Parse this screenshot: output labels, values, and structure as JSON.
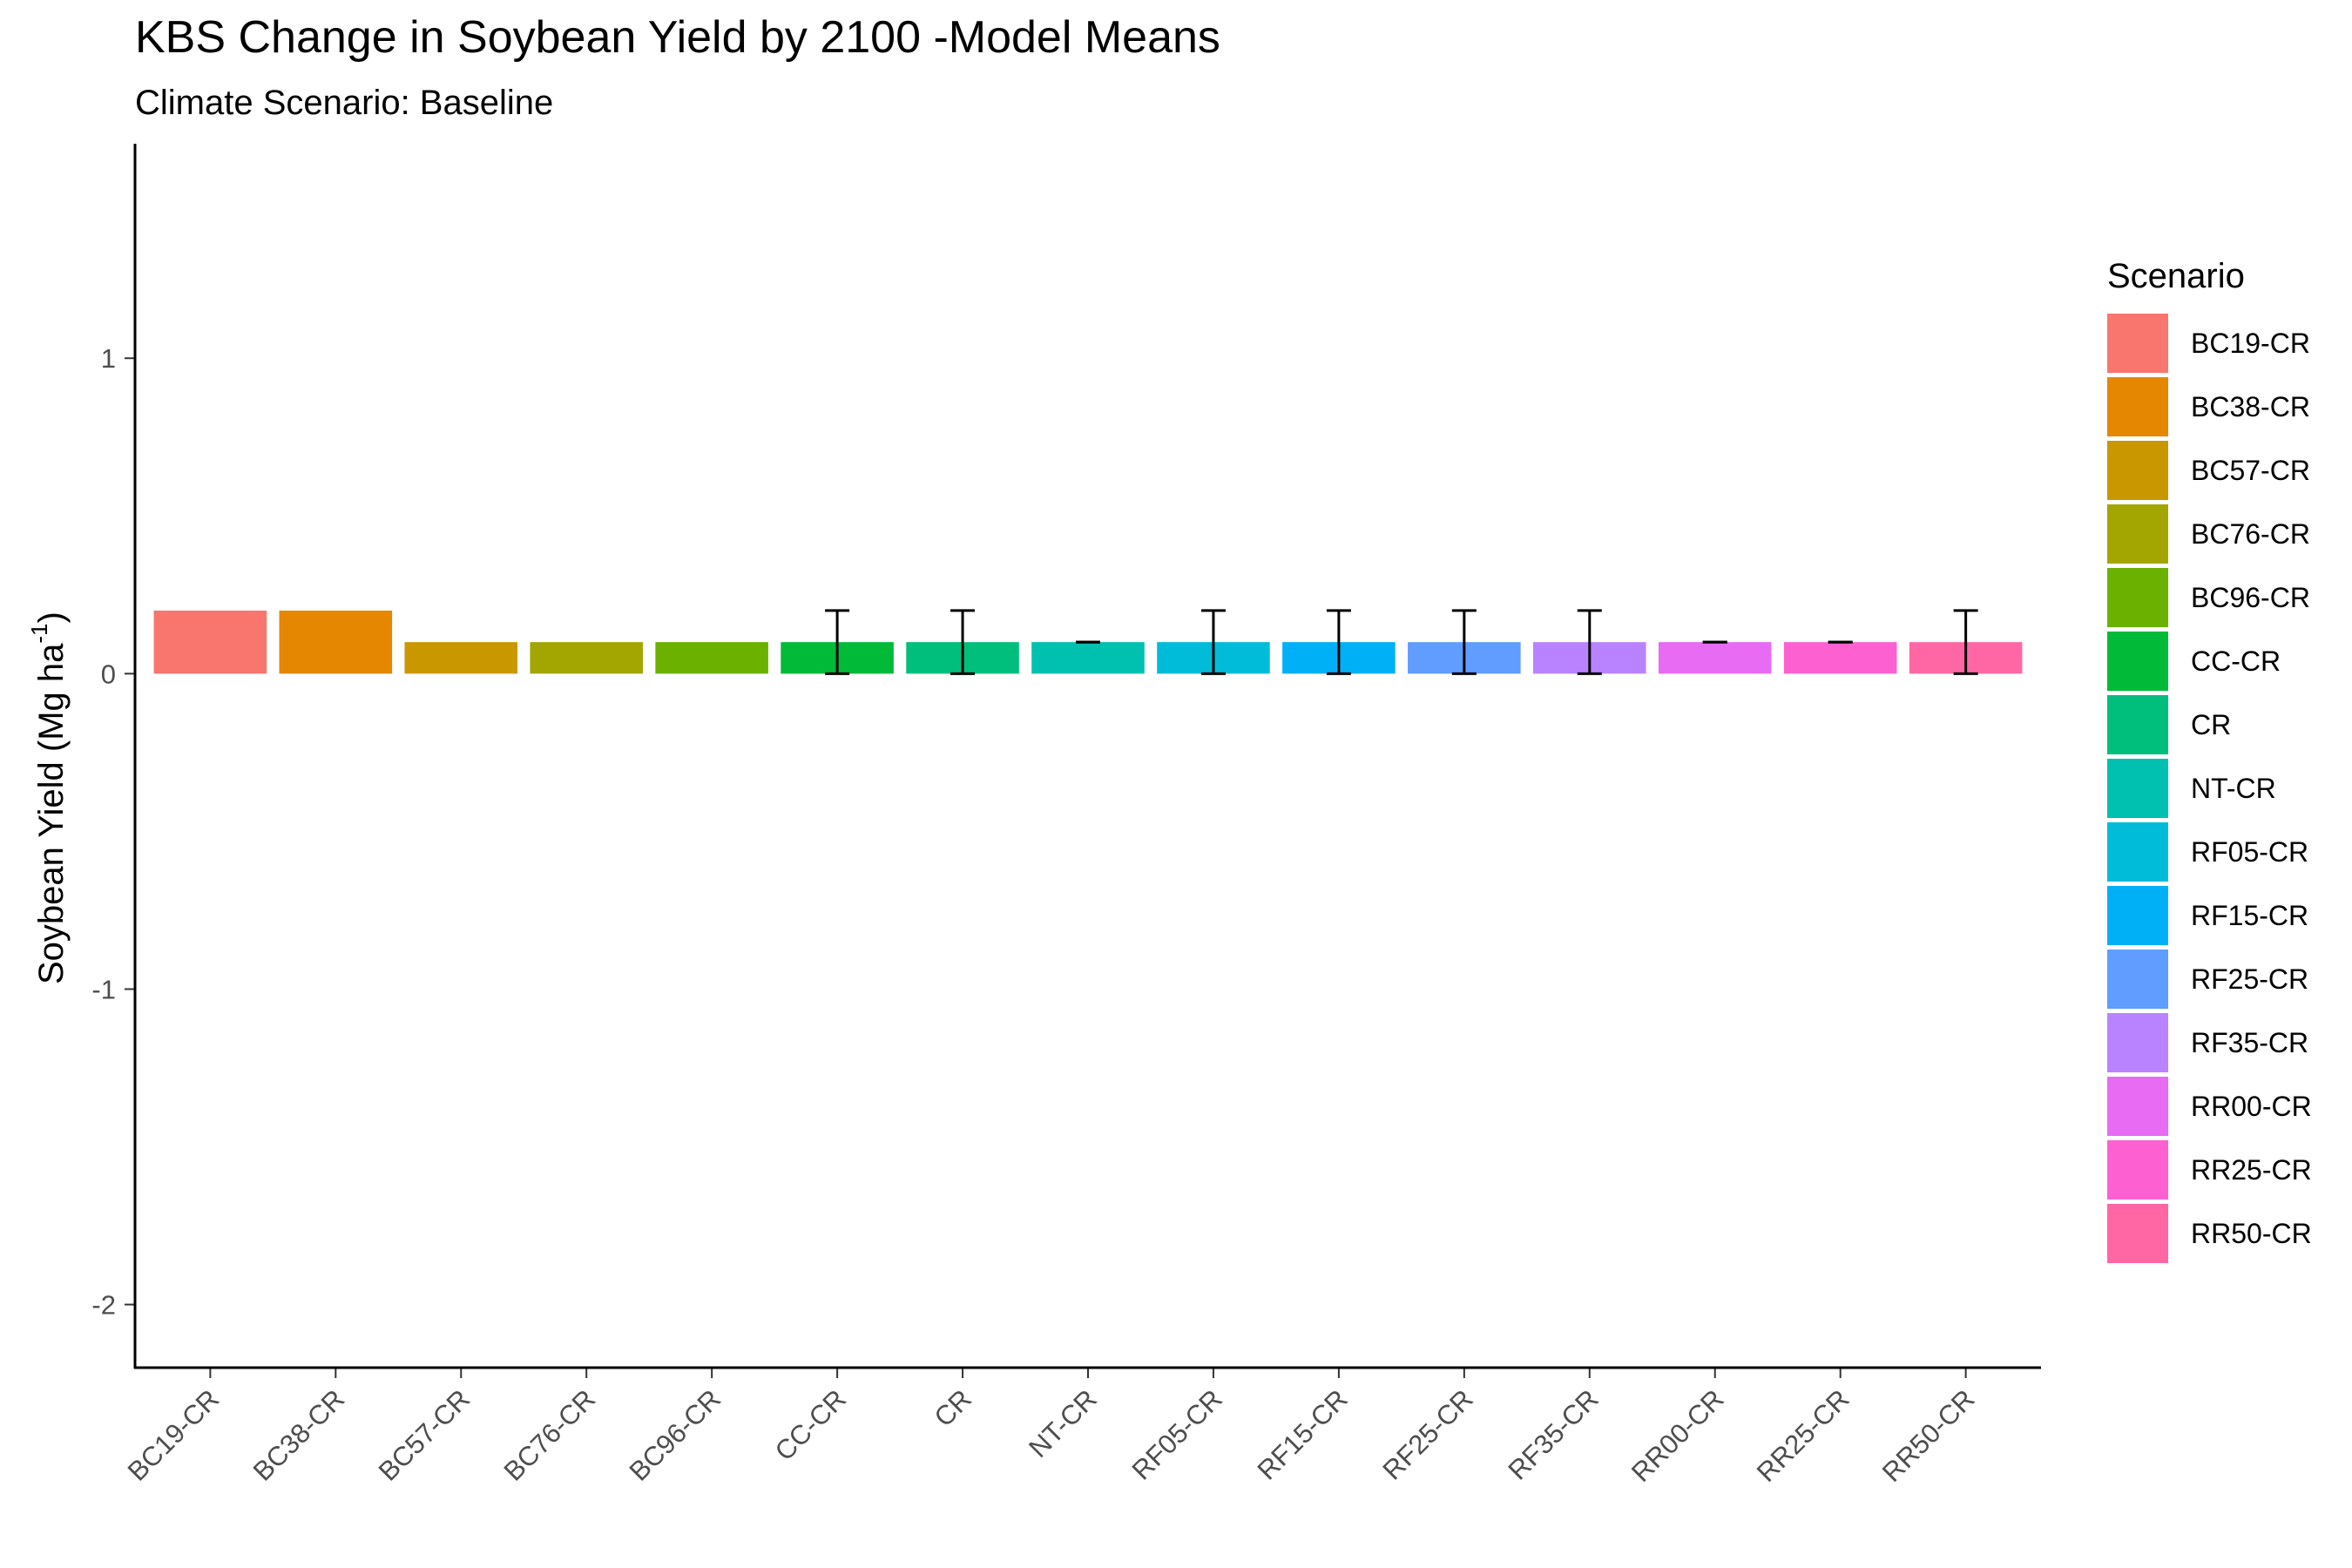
{
  "chart_data": {
    "type": "bar",
    "title": "KBS Change in Soybean Yield by  2100 -Model Means",
    "subtitle": "Climate Scenario: Baseline",
    "ylabel_main": "Soybean Yield (Mg ha",
    "ylabel_sup": "-1",
    "ylabel_close": ")",
    "xlabel": "",
    "ylim": [
      -2.2,
      1.68
    ],
    "yticks": [
      1,
      0,
      -1,
      -2
    ],
    "grid": false,
    "legend": {
      "title": "Scenario",
      "position": "right"
    },
    "categories": [
      "BC19-CR",
      "BC38-CR",
      "BC57-CR",
      "BC76-CR",
      "BC96-CR",
      "CC-CR",
      "CR",
      "NT-CR",
      "RF05-CR",
      "RF15-CR",
      "RF25-CR",
      "RF35-CR",
      "RR00-CR",
      "RR25-CR",
      "RR50-CR"
    ],
    "values": [
      0.2,
      0.2,
      0.1,
      0.1,
      0.1,
      0.1,
      0.1,
      0.1,
      0.1,
      0.1,
      0.1,
      0.1,
      0.1,
      0.1,
      0.1
    ],
    "error_low": [
      null,
      null,
      null,
      null,
      null,
      0.0,
      0.0,
      0.1,
      0.0,
      0.0,
      0.0,
      0.0,
      0.1,
      0.1,
      0.0
    ],
    "error_high": [
      null,
      null,
      null,
      null,
      null,
      0.2,
      0.2,
      0.1,
      0.2,
      0.2,
      0.2,
      0.2,
      0.1,
      0.1,
      0.2
    ],
    "colors": [
      "#F8766D",
      "#E58700",
      "#C99800",
      "#A3A500",
      "#6BB100",
      "#00BA38",
      "#00BF7D",
      "#00C0AF",
      "#00BCD8",
      "#00B0F6",
      "#619CFF",
      "#B983FF",
      "#E76BF3",
      "#FD61D1",
      "#FF67A4"
    ]
  }
}
